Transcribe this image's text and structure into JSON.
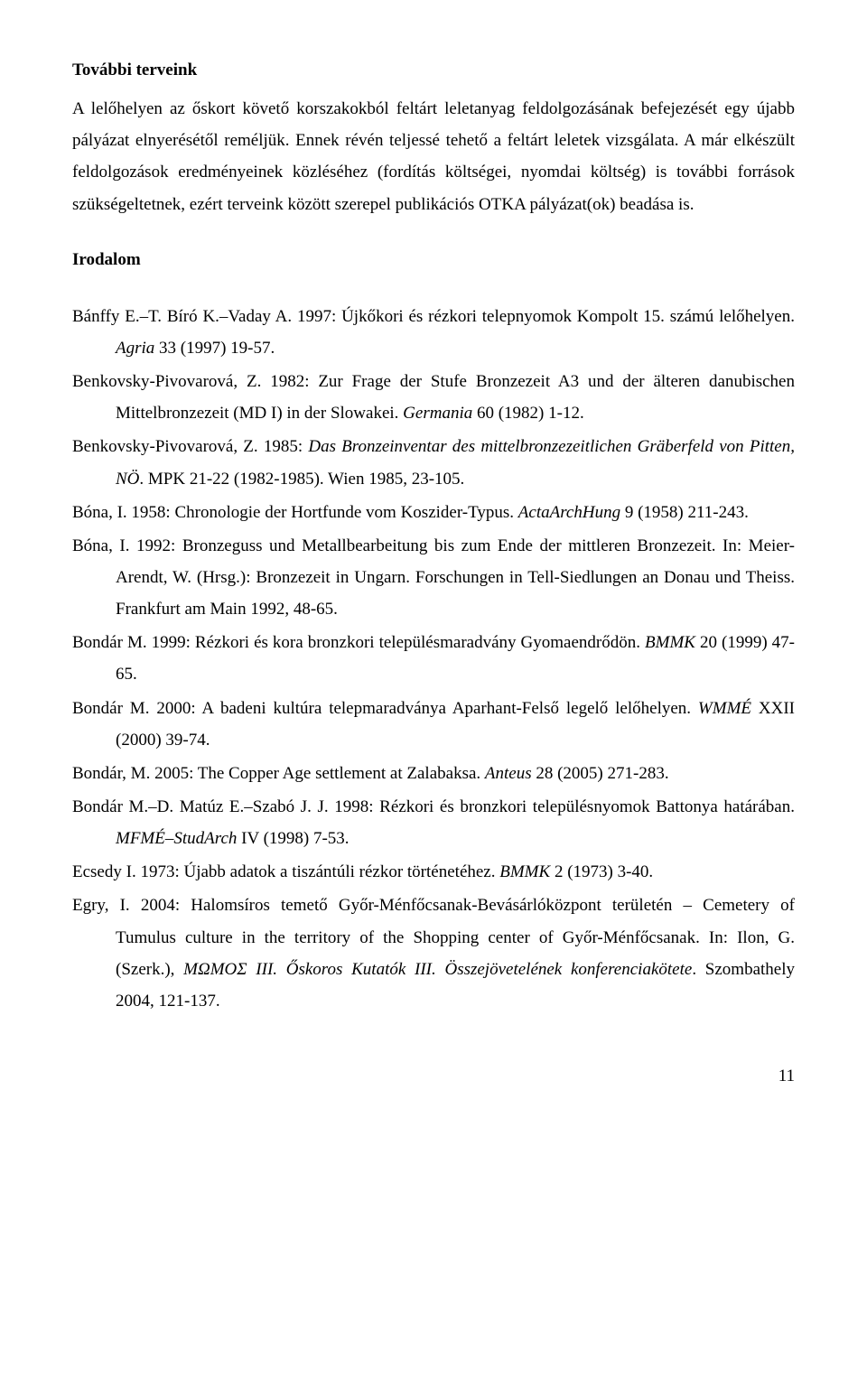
{
  "heading": "További terveink",
  "para1": "A lelőhelyen az őskort követő korszakokból feltárt leletanyag feldolgozásának befejezését egy újabb pályázat elnyerésétől reméljük. Ennek révén teljessé tehető a feltárt leletek vizsgálata. A már elkészült feldolgozások eredményeinek közléséhez (fordítás költségei, nyomdai költség) is további források szükségeltetnek, ezért terveink között szerepel publikációs OTKA pályázat(ok) beadása is.",
  "sectionHeading": "Irodalom",
  "bib": [
    {
      "plain1": "Bánffy E.–T. Bíró K.–Vaday A. 1997: Újkőkori és rézkori telepnyomok Kompolt 15. számú lelőhelyen. ",
      "italic1": "Agria",
      "plain2": " 33 (1997) 19-57."
    },
    {
      "plain1": "Benkovsky-Pivovarová, Z. 1982: Zur Frage der Stufe Bronzezeit A3 und der älteren danubischen Mittelbronzezeit (MD I) in der Slowakei. ",
      "italic1": "Germania",
      "plain2": " 60 (1982) 1-12."
    },
    {
      "plain1": "Benkovsky-Pivovarová, Z. 1985: ",
      "italic1": "Das Bronzeinventar des mittelbronzezeitlichen Gräberfeld von Pitten, NÖ",
      "plain2": ". MPK 21-22 (1982-1985). Wien 1985, 23-105."
    },
    {
      "plain1": "Bóna, I. 1958: Chronologie der Hortfunde vom Koszider-Typus. ",
      "italic1": "ActaArchHung",
      "plain2": " 9 (1958) 211-243."
    },
    {
      "plain1": "Bóna, I. 1992: Bronzeguss und Metallbearbeitung bis zum Ende der mittleren Bronzezeit. In: Meier-Arendt, W. (Hrsg.): Bronzezeit in Ungarn. Forschungen in Tell-Siedlungen an Donau und Theiss. Frankfurt am Main 1992, 48-65.",
      "italic1": "",
      "plain2": ""
    },
    {
      "plain1": "Bondár M. 1999: Rézkori és kora bronzkori településmaradvány Gyomaendrődön. ",
      "italic1": "BMMK",
      "plain2": " 20 (1999) 47-65."
    },
    {
      "plain1": "Bondár M. 2000: A badeni kultúra telepmaradványa Aparhant-Felső legelő lelőhelyen. ",
      "italic1": "WMMÉ",
      "plain2": " XXII (2000) 39-74."
    },
    {
      "plain1": "Bondár, M. 2005: The Copper Age settlement at Zalabaksa. ",
      "italic1": "Anteus",
      "plain2": " 28 (2005) 271-283."
    },
    {
      "plain1": "Bondár M.–D. Matúz E.–Szabó J. J. 1998: Rézkori és bronzkori településnyomok Battonya határában. ",
      "italic1": "MFMÉ–StudArch",
      "plain2": " IV (1998) 7-53."
    },
    {
      "plain1": "Ecsedy I. 1973: Újabb adatok a tiszántúli rézkor történetéhez. ",
      "italic1": "BMMK",
      "plain2": " 2 (1973) 3-40."
    },
    {
      "plain1": "Egry, I. 2004: Halomsíros temető Győr-Ménfőcsanak-Bevásárlóközpont területén – Cemetery of Tumulus culture in the territory of the Shopping center of Győr-Ménfőcsanak. In: Ilon, G. (Szerk.), ",
      "italic1": "MΩMOΣ III. Őskoros Kutatók III. Összejövetelének konferenciakötete",
      "plain2": ". Szombathely 2004, 121-137."
    }
  ],
  "pageNumber": "11"
}
